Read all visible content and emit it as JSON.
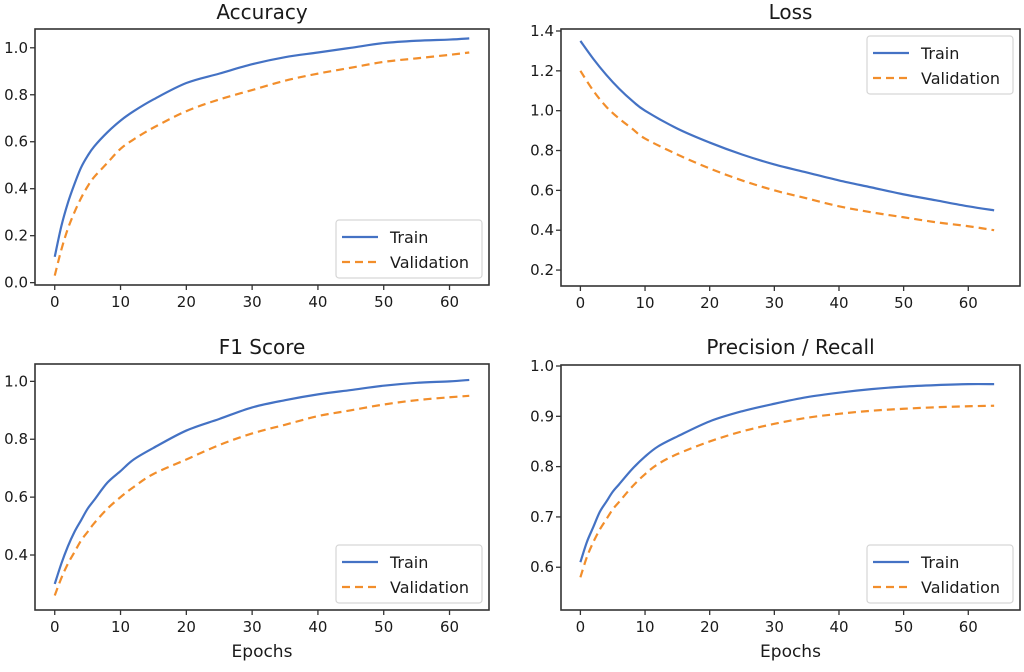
{
  "chart_data": [
    {
      "type": "line",
      "title": "Accuracy",
      "xlabel": "",
      "ylabel": "",
      "xlim": [
        -3,
        66
      ],
      "ylim": [
        -0.01,
        1.08
      ],
      "xticks": [
        0,
        10,
        20,
        30,
        40,
        50,
        60
      ],
      "xtick_labels": [
        "0",
        "10",
        "20",
        "30",
        "40",
        "50",
        "60"
      ],
      "yticks": [
        0.0,
        0.2,
        0.4,
        0.6,
        0.8,
        1.0
      ],
      "ytick_labels": [
        "0.0",
        "0.2",
        "0.4",
        "0.6",
        "0.8",
        "1.0"
      ],
      "legend": "bottom-right",
      "grid": false,
      "x": [
        0,
        1,
        2,
        3,
        4,
        5,
        6,
        8,
        10,
        12,
        15,
        20,
        25,
        30,
        35,
        40,
        45,
        50,
        55,
        60,
        63
      ],
      "series": [
        {
          "name": "Train",
          "color": "#4472c4",
          "style": "solid",
          "values": [
            0.11,
            0.24,
            0.34,
            0.42,
            0.49,
            0.54,
            0.58,
            0.64,
            0.69,
            0.73,
            0.78,
            0.85,
            0.89,
            0.93,
            0.96,
            0.98,
            1.0,
            1.02,
            1.03,
            1.035,
            1.04
          ]
        },
        {
          "name": "Validation",
          "color": "#f28e2b",
          "style": "dashed",
          "values": [
            0.03,
            0.14,
            0.23,
            0.3,
            0.36,
            0.41,
            0.45,
            0.51,
            0.57,
            0.61,
            0.66,
            0.73,
            0.78,
            0.82,
            0.86,
            0.89,
            0.915,
            0.94,
            0.955,
            0.97,
            0.98
          ]
        }
      ]
    },
    {
      "type": "line",
      "title": "Loss",
      "xlabel": "",
      "ylabel": "",
      "xlim": [
        -3,
        68
      ],
      "ylim": [
        0.12,
        1.41
      ],
      "xticks": [
        0,
        10,
        20,
        30,
        40,
        50,
        60
      ],
      "xtick_labels": [
        "0",
        "10",
        "20",
        "30",
        "40",
        "50",
        "60"
      ],
      "yticks": [
        0.2,
        0.4,
        0.6,
        0.8,
        1.0,
        1.2,
        1.4
      ],
      "ytick_labels": [
        "0.2",
        "0.4",
        "0.6",
        "0.8",
        "1.0",
        "1.2",
        "1.4"
      ],
      "legend": "top-right",
      "grid": false,
      "x": [
        0,
        2,
        4,
        6,
        8,
        10,
        15,
        20,
        25,
        30,
        35,
        40,
        45,
        50,
        55,
        60,
        64
      ],
      "series": [
        {
          "name": "Train",
          "color": "#4472c4",
          "style": "solid",
          "values": [
            1.35,
            1.26,
            1.18,
            1.11,
            1.05,
            1.0,
            0.91,
            0.84,
            0.78,
            0.73,
            0.69,
            0.65,
            0.615,
            0.58,
            0.55,
            0.52,
            0.5
          ]
        },
        {
          "name": "Validation",
          "color": "#f28e2b",
          "style": "dashed",
          "values": [
            1.2,
            1.1,
            1.02,
            0.96,
            0.91,
            0.86,
            0.78,
            0.71,
            0.65,
            0.6,
            0.56,
            0.52,
            0.49,
            0.465,
            0.44,
            0.42,
            0.4
          ]
        }
      ]
    },
    {
      "type": "line",
      "title": "F1 Score",
      "xlabel": "Epochs",
      "ylabel": "",
      "xlim": [
        -3,
        66
      ],
      "ylim": [
        0.21,
        1.06
      ],
      "xticks": [
        0,
        10,
        20,
        30,
        40,
        50,
        60
      ],
      "xtick_labels": [
        "0",
        "10",
        "20",
        "30",
        "40",
        "50",
        "60"
      ],
      "yticks": [
        0.4,
        0.6,
        0.8,
        1.0
      ],
      "ytick_labels": [
        "0.4",
        "0.6",
        "0.8",
        "1.0"
      ],
      "legend": "bottom-right",
      "grid": false,
      "x": [
        0,
        1,
        2,
        3,
        4,
        5,
        6,
        8,
        10,
        12,
        15,
        20,
        25,
        30,
        35,
        40,
        45,
        50,
        55,
        60,
        63
      ],
      "series": [
        {
          "name": "Train",
          "color": "#4472c4",
          "style": "solid",
          "values": [
            0.3,
            0.37,
            0.43,
            0.48,
            0.52,
            0.56,
            0.59,
            0.65,
            0.69,
            0.73,
            0.77,
            0.83,
            0.87,
            0.91,
            0.935,
            0.955,
            0.97,
            0.985,
            0.995,
            1.0,
            1.005
          ]
        },
        {
          "name": "Validation",
          "color": "#f28e2b",
          "style": "dashed",
          "values": [
            0.26,
            0.32,
            0.37,
            0.41,
            0.45,
            0.48,
            0.51,
            0.56,
            0.6,
            0.635,
            0.68,
            0.73,
            0.78,
            0.82,
            0.85,
            0.88,
            0.9,
            0.92,
            0.935,
            0.945,
            0.95
          ]
        }
      ]
    },
    {
      "type": "line",
      "title": "Precision / Recall",
      "xlabel": "Epochs",
      "ylabel": "",
      "xlim": [
        -3,
        68
      ],
      "ylim": [
        0.515,
        1.002
      ],
      "xticks": [
        0,
        10,
        20,
        30,
        40,
        50,
        60
      ],
      "xtick_labels": [
        "0",
        "10",
        "20",
        "30",
        "40",
        "50",
        "60"
      ],
      "yticks": [
        0.6,
        0.7,
        0.8,
        0.9,
        1.0
      ],
      "ytick_labels": [
        "0.6",
        "0.7",
        "0.8",
        "0.9",
        "1.0"
      ],
      "legend": "bottom-right",
      "grid": false,
      "x": [
        0,
        1,
        2,
        3,
        4,
        5,
        6,
        8,
        10,
        12,
        15,
        20,
        25,
        30,
        35,
        40,
        45,
        50,
        55,
        60,
        64
      ],
      "series": [
        {
          "name": "Train",
          "color": "#4472c4",
          "style": "solid",
          "values": [
            0.61,
            0.65,
            0.68,
            0.71,
            0.73,
            0.75,
            0.765,
            0.795,
            0.82,
            0.84,
            0.86,
            0.89,
            0.91,
            0.925,
            0.938,
            0.947,
            0.954,
            0.959,
            0.962,
            0.964,
            0.964
          ]
        },
        {
          "name": "Validation",
          "color": "#f28e2b",
          "style": "dashed",
          "values": [
            0.58,
            0.62,
            0.65,
            0.675,
            0.695,
            0.715,
            0.73,
            0.76,
            0.785,
            0.805,
            0.825,
            0.85,
            0.87,
            0.885,
            0.897,
            0.905,
            0.911,
            0.915,
            0.918,
            0.92,
            0.921
          ]
        }
      ]
    }
  ]
}
